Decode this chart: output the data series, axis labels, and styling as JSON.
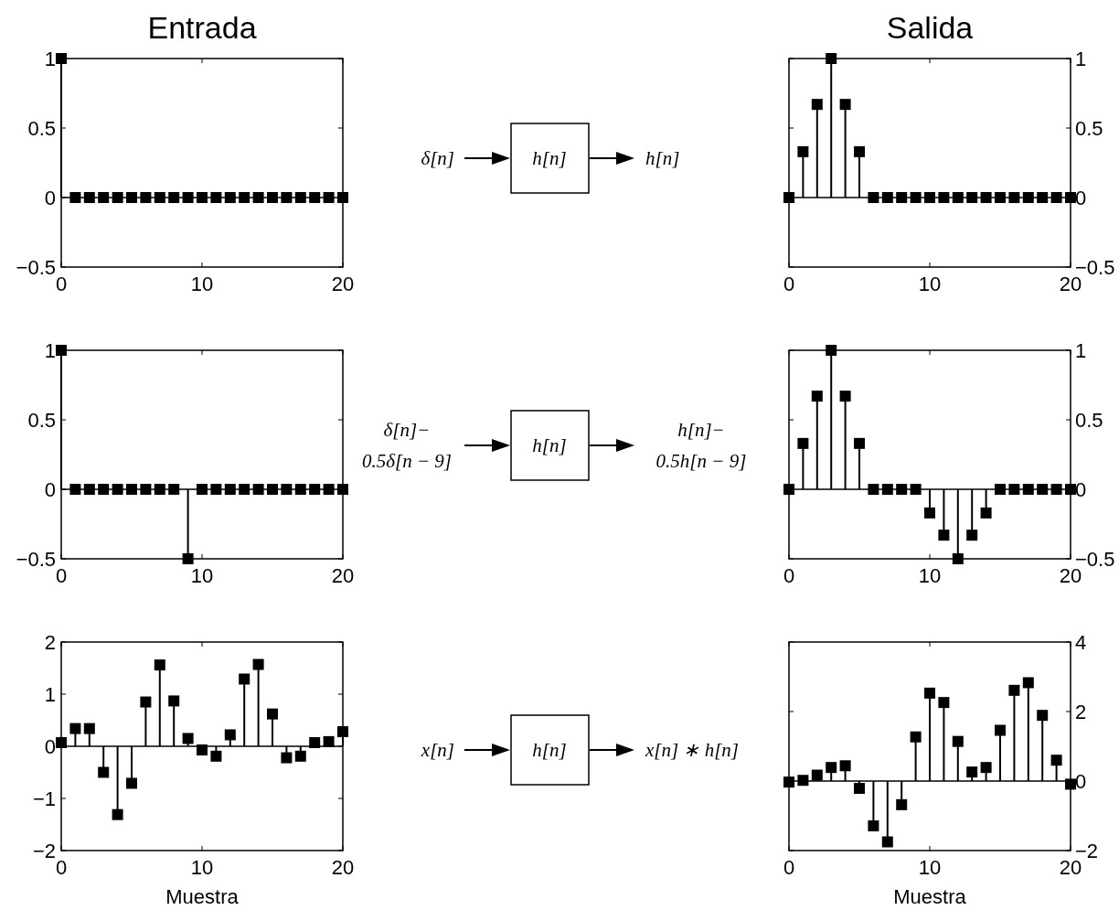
{
  "chart_data": [
    {
      "type": "lollipop",
      "title": "Entrada",
      "x": [
        0,
        1,
        2,
        3,
        4,
        5,
        6,
        7,
        8,
        9,
        10,
        11,
        12,
        13,
        14,
        15,
        16,
        17,
        18,
        19,
        20
      ],
      "values": [
        1,
        0,
        0,
        0,
        0,
        0,
        0,
        0,
        0,
        0,
        0,
        0,
        0,
        0,
        0,
        0,
        0,
        0,
        0,
        0,
        0
      ],
      "color": "#000000",
      "marker": "square",
      "xlim": [
        0,
        20
      ],
      "xticks": [
        0,
        10,
        20
      ],
      "ylim": [
        -0.5,
        1
      ],
      "yticks": [
        {
          "value": -0.5,
          "label": "−0.5"
        },
        0,
        0.5,
        1
      ]
    },
    {
      "type": "other",
      "annotations": [
        "δ[n]",
        "h[n]",
        "h[n]"
      ]
    },
    {
      "type": "lollipop",
      "title": "Salida",
      "x": [
        0,
        1,
        2,
        3,
        4,
        5,
        6,
        7,
        8,
        9,
        10,
        11,
        12,
        13,
        14,
        15,
        16,
        17,
        18,
        19,
        20
      ],
      "values": [
        0,
        0.33,
        0.67,
        1,
        0.67,
        0.33,
        0,
        0,
        0,
        0,
        0,
        0,
        0,
        0,
        0,
        0,
        0,
        0,
        0,
        0,
        0
      ],
      "color": "#000000",
      "marker": "square",
      "xlim": [
        0,
        20
      ],
      "xticks": [
        0,
        10,
        20
      ],
      "ylim": [
        -0.5,
        1
      ],
      "yticks": [
        {
          "value": -0.5,
          "label": "−0.5"
        },
        0,
        0.5,
        1
      ]
    },
    {
      "type": "lollipop",
      "x": [
        0,
        1,
        2,
        3,
        4,
        5,
        6,
        7,
        8,
        9,
        10,
        11,
        12,
        13,
        14,
        15,
        16,
        17,
        18,
        19,
        20
      ],
      "values": [
        1,
        0,
        0,
        0,
        0,
        0,
        0,
        0,
        0,
        -0.5,
        0,
        0,
        0,
        0,
        0,
        0,
        0,
        0,
        0,
        0,
        0
      ],
      "color": "#000000",
      "marker": "square",
      "xlim": [
        0,
        20
      ],
      "xticks": [
        0,
        10,
        20
      ],
      "ylim": [
        -0.5,
        1
      ],
      "yticks": [
        {
          "value": -0.5,
          "label": "−0.5"
        },
        0,
        0.5,
        1
      ]
    },
    {
      "type": "other",
      "annotations": [
        "δ[n]−\n0.5δ[n − 9]",
        "h[n]",
        "h[n]−\n0.5h[n − 9]"
      ]
    },
    {
      "type": "lollipop",
      "x": [
        0,
        1,
        2,
        3,
        4,
        5,
        6,
        7,
        8,
        9,
        10,
        11,
        12,
        13,
        14,
        15,
        16,
        17,
        18,
        19,
        20
      ],
      "values": [
        0,
        0.33,
        0.67,
        1,
        0.67,
        0.33,
        0,
        0,
        0,
        0,
        -0.17,
        -0.33,
        -0.5,
        -0.33,
        -0.17,
        0,
        0,
        0,
        0,
        0,
        0
      ],
      "color": "#000000",
      "marker": "square",
      "xlim": [
        0,
        20
      ],
      "xticks": [
        0,
        10,
        20
      ],
      "ylim": [
        -0.5,
        1
      ],
      "yticks": [
        {
          "value": -0.5,
          "label": "−0.5"
        },
        0,
        0.5,
        1
      ]
    },
    {
      "type": "lollipop",
      "xlabel": "Muestra",
      "x": [
        0,
        1,
        2,
        3,
        4,
        5,
        6,
        7,
        8,
        9,
        10,
        11,
        12,
        13,
        14,
        15,
        16,
        17,
        18,
        19,
        20
      ],
      "values": [
        0.07,
        0.34,
        0.34,
        -0.5,
        -1.31,
        -0.71,
        0.85,
        1.56,
        0.87,
        0.15,
        -0.07,
        -0.19,
        0.22,
        1.29,
        1.57,
        0.62,
        -0.22,
        -0.19,
        0.07,
        0.09,
        0.28
      ],
      "color": "#000000",
      "marker": "square",
      "xlim": [
        0,
        20
      ],
      "xticks": [
        0,
        10,
        20
      ],
      "ylim": [
        -2,
        2
      ],
      "yticks": [
        {
          "value": -2,
          "label": "−2"
        },
        {
          "value": -1,
          "label": "−1"
        },
        0,
        1,
        2
      ]
    },
    {
      "type": "other",
      "annotations": [
        "x[n]",
        "h[n]",
        "x[n] ∗ h[n]"
      ]
    },
    {
      "type": "lollipop",
      "xlabel": "Muestra",
      "x": [
        0,
        1,
        2,
        3,
        4,
        5,
        6,
        7,
        8,
        9,
        10,
        11,
        12,
        13,
        14,
        15,
        16,
        17,
        18,
        19,
        20
      ],
      "values": [
        -0.03,
        0.02,
        0.17,
        0.39,
        0.44,
        -0.21,
        -1.29,
        -1.75,
        -0.68,
        1.27,
        2.53,
        2.26,
        1.14,
        0.26,
        0.39,
        1.46,
        2.61,
        2.83,
        1.89,
        0.6,
        -0.09
      ],
      "color": "#000000",
      "marker": "square",
      "xlim": [
        0,
        20
      ],
      "xticks": [
        0,
        10,
        20
      ],
      "ylim": [
        -2,
        4
      ],
      "yticks": [
        {
          "value": -2,
          "label": "−2"
        },
        0,
        2,
        4
      ]
    }
  ]
}
